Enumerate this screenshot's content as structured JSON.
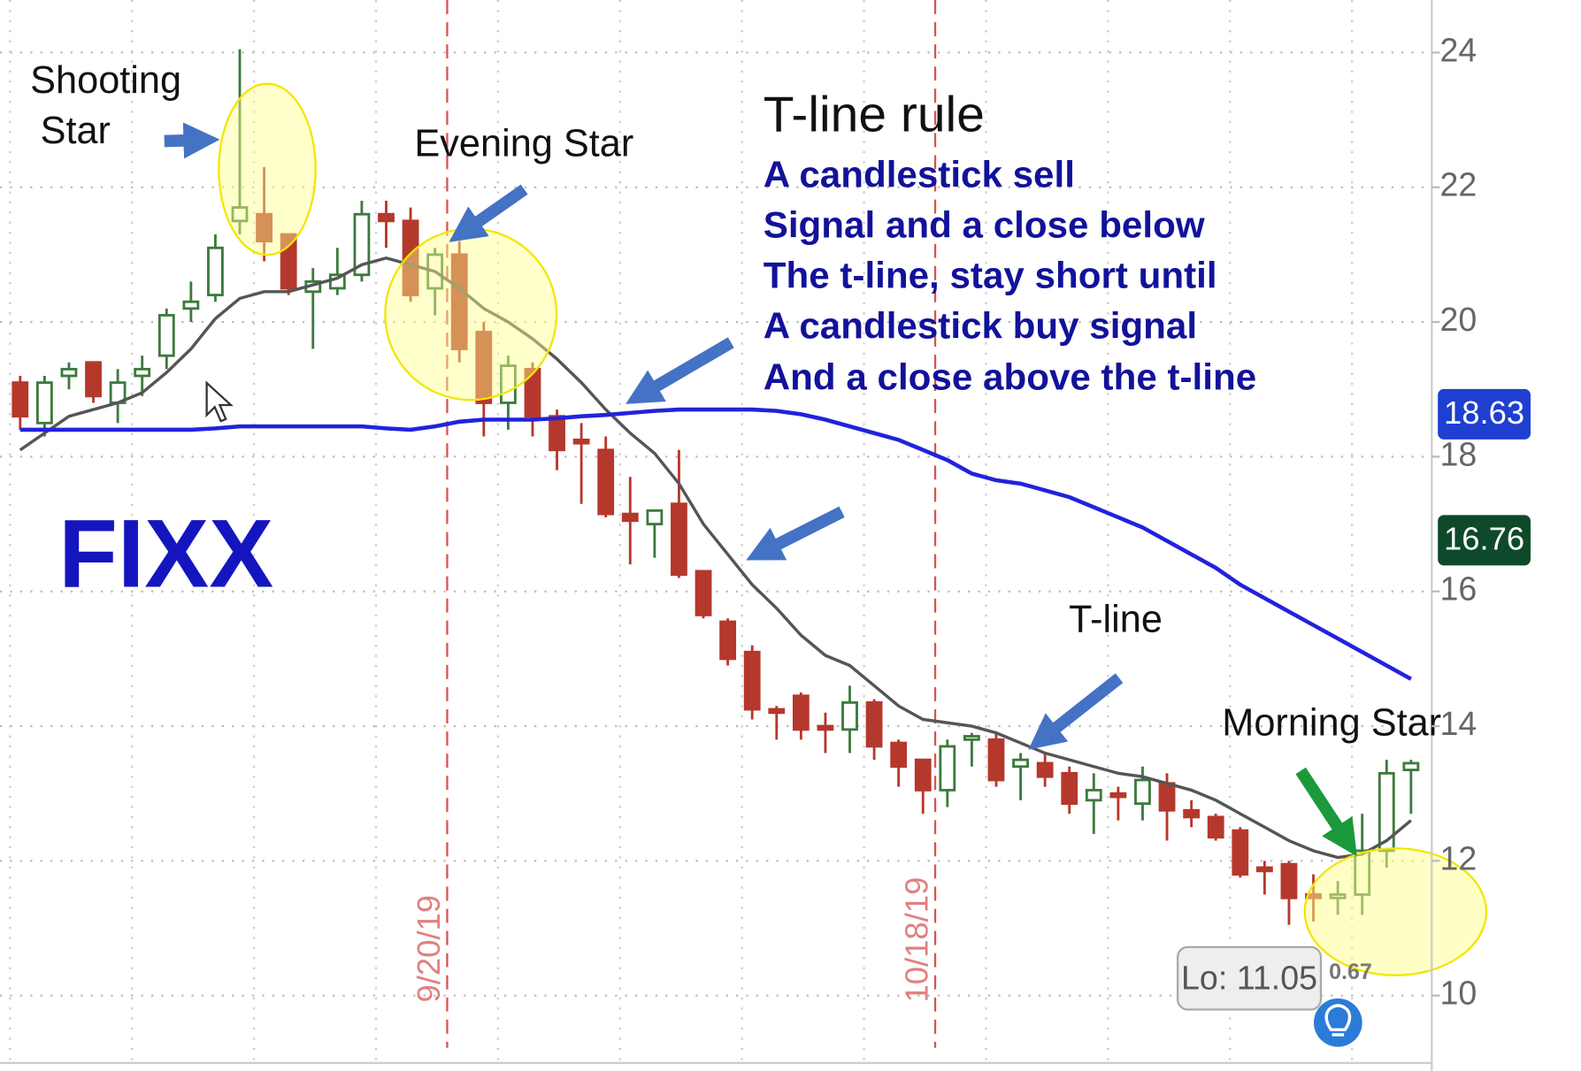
{
  "chart_data": {
    "type": "candlestick",
    "categories": [
      null,
      null,
      null,
      null,
      null,
      null,
      null,
      null,
      null,
      null,
      null,
      null,
      null,
      null,
      null,
      null,
      null,
      null,
      "9/20/19",
      null,
      null,
      null,
      null,
      null,
      null,
      null,
      null,
      null,
      null,
      null,
      null,
      null,
      null,
      null,
      null,
      null,
      null,
      null,
      "10/18/19",
      null,
      null,
      null,
      null,
      null,
      null,
      null,
      null,
      null,
      null,
      null,
      null,
      null,
      null,
      null,
      null,
      null,
      null,
      null
    ],
    "open": [
      19.1,
      18.5,
      19.2,
      19.4,
      18.8,
      19.2,
      19.5,
      20.2,
      20.4,
      21.5,
      21.6,
      21.3,
      20.45,
      20.5,
      20.7,
      21.6,
      21.5,
      20.5,
      21.0,
      19.85,
      18.8,
      19.3,
      18.6,
      18.25,
      18.1,
      17.15,
      17.0,
      17.3,
      16.3,
      15.55,
      15.1,
      14.25,
      14.45,
      14.0,
      13.95,
      14.35,
      13.75,
      13.5,
      13.05,
      13.8,
      13.8,
      13.4,
      13.45,
      13.3,
      12.9,
      13.0,
      12.85,
      13.15,
      12.75,
      12.65,
      12.45,
      11.9,
      11.95,
      11.5,
      11.45,
      11.5,
      12.15,
      13.35
    ],
    "high": [
      19.2,
      19.2,
      19.4,
      19.4,
      19.3,
      19.5,
      20.2,
      20.6,
      21.3,
      24.05,
      22.3,
      21.3,
      20.8,
      21.1,
      21.8,
      21.8,
      21.7,
      21.1,
      21.2,
      20.0,
      19.5,
      19.4,
      18.7,
      18.5,
      18.3,
      17.7,
      17.2,
      18.1,
      16.3,
      15.6,
      15.2,
      14.3,
      14.5,
      14.2,
      14.6,
      14.4,
      13.8,
      13.5,
      13.8,
      13.9,
      13.9,
      13.6,
      13.6,
      13.4,
      13.3,
      13.1,
      13.4,
      13.3,
      12.9,
      12.7,
      12.5,
      12.0,
      12.0,
      11.8,
      11.7,
      12.7,
      13.5,
      13.5
    ],
    "low": [
      18.4,
      18.3,
      19.0,
      18.8,
      18.5,
      18.9,
      19.3,
      20.0,
      20.3,
      21.3,
      20.9,
      20.4,
      19.6,
      20.4,
      20.6,
      21.1,
      20.3,
      20.1,
      19.4,
      18.3,
      18.4,
      18.3,
      17.8,
      17.3,
      17.1,
      16.4,
      16.5,
      16.2,
      15.6,
      14.9,
      14.1,
      13.8,
      13.8,
      13.6,
      13.6,
      13.5,
      13.1,
      12.7,
      12.8,
      13.4,
      13.1,
      12.9,
      13.1,
      12.7,
      12.4,
      12.6,
      12.6,
      12.3,
      12.5,
      12.3,
      11.75,
      11.5,
      11.05,
      11.1,
      11.2,
      11.2,
      11.9,
      12.7
    ],
    "close": [
      18.6,
      19.1,
      19.3,
      18.9,
      19.1,
      19.3,
      20.1,
      20.3,
      21.1,
      21.7,
      21.2,
      20.5,
      20.6,
      20.7,
      21.6,
      21.5,
      20.4,
      21.0,
      19.6,
      18.8,
      19.35,
      18.6,
      18.1,
      18.2,
      17.15,
      17.05,
      17.2,
      16.25,
      15.65,
      15.0,
      14.25,
      14.2,
      13.95,
      13.95,
      14.35,
      13.7,
      13.4,
      13.05,
      13.7,
      13.85,
      13.2,
      13.5,
      13.25,
      12.85,
      13.05,
      12.95,
      13.2,
      12.75,
      12.65,
      12.35,
      11.8,
      11.85,
      11.45,
      11.45,
      11.5,
      12.15,
      13.3,
      13.45
    ],
    "up_color": "#3d7a3d",
    "down_color": "#b5382c",
    "lines": [
      {
        "color": "#555555",
        "values": [
          18.1,
          18.35,
          18.6,
          18.7,
          18.8,
          18.95,
          19.25,
          19.6,
          20.05,
          20.35,
          20.45,
          20.45,
          20.55,
          20.65,
          20.85,
          20.95,
          20.85,
          20.75,
          20.5,
          20.2,
          20.0,
          19.75,
          19.45,
          19.1,
          18.7,
          18.35,
          18.05,
          17.6,
          17.0,
          16.55,
          16.1,
          15.75,
          15.35,
          15.05,
          14.9,
          14.6,
          14.3,
          14.1,
          14.05,
          14.0,
          13.9,
          13.75,
          13.6,
          13.5,
          13.4,
          13.3,
          13.25,
          13.15,
          13.05,
          12.9,
          12.7,
          12.5,
          12.3,
          12.15,
          12.05,
          12.1,
          12.3,
          12.6
        ]
      },
      {
        "color": "#2222dd",
        "values": [
          18.4,
          18.4,
          18.4,
          18.4,
          18.4,
          18.4,
          18.4,
          18.4,
          18.42,
          18.45,
          18.45,
          18.45,
          18.45,
          18.45,
          18.45,
          18.42,
          18.4,
          18.45,
          18.52,
          18.55,
          18.55,
          18.55,
          18.57,
          18.6,
          18.62,
          18.65,
          18.68,
          18.7,
          18.7,
          18.7,
          18.7,
          18.68,
          18.63,
          18.55,
          18.45,
          18.35,
          18.25,
          18.1,
          17.95,
          17.75,
          17.65,
          17.6,
          17.5,
          17.4,
          17.25,
          17.1,
          16.95,
          16.75,
          16.55,
          16.35,
          16.1,
          15.9,
          15.7,
          15.5,
          15.3,
          15.1,
          14.9,
          14.7
        ]
      }
    ],
    "ylim": [
      9,
      24.78
    ],
    "yticks": [
      10,
      12,
      14,
      16,
      18,
      20,
      22,
      24
    ],
    "grid": true,
    "price_tags": [
      {
        "value": 18.63,
        "color": "#1f3fd0"
      },
      {
        "value": 16.76,
        "color": "#0e4a2a"
      }
    ],
    "annotations": {
      "shooting_star": [
        "Shooting",
        "Star"
      ],
      "evening_star": "Evening Star",
      "rule_title": "T-line rule",
      "rule_lines": [
        "A candlestick sell",
        "Signal and a close below",
        "The t-line, stay short until",
        "A candlestick buy signal",
        "And a close above the t-line"
      ],
      "ticker": "FIXX",
      "t_line": "T-line",
      "morning_star": "Morning Star",
      "low_label": "Lo: 11.05",
      "partial_label": "0.67"
    }
  }
}
